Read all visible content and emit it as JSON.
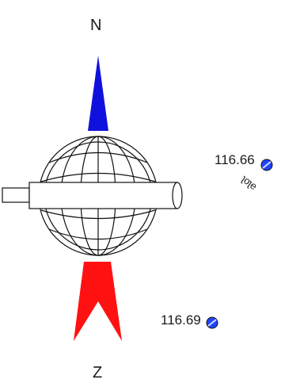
{
  "compass": {
    "north_label": "N",
    "south_label": "Z",
    "north_color": "#1111dd",
    "south_color": "#ff1111"
  },
  "spot_heights": [
    {
      "value": "116.66",
      "marker_color": "#2244ff"
    },
    {
      "value": "116.69",
      "marker_color": "#2244ff"
    }
  ],
  "rotated_text": "ʅoʅe"
}
